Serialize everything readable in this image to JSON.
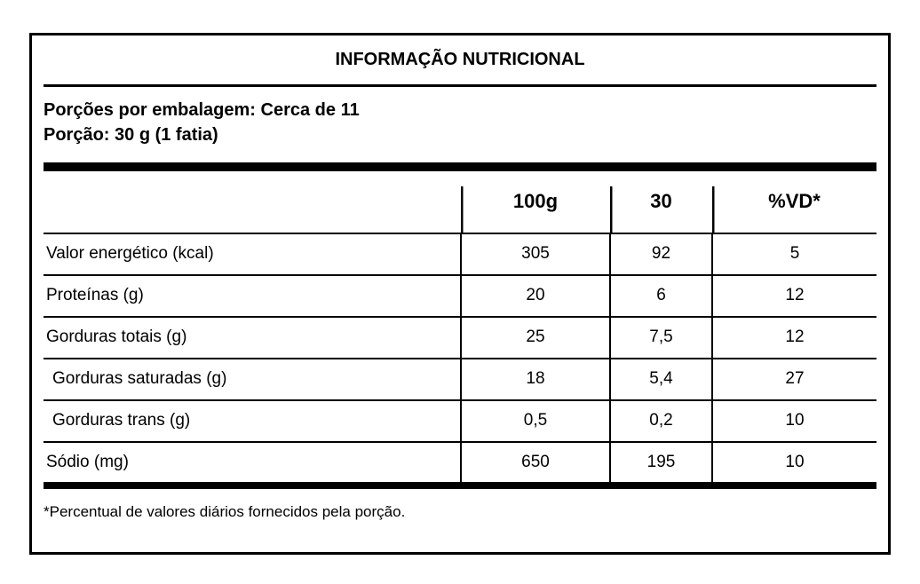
{
  "label": {
    "title": "INFORMAÇÃO NUTRICIONAL",
    "servings_per_package": "Porções por embalagem: Cerca de 11",
    "serving_size": "Porção: 30 g (1 fatia)",
    "footnote": "*Percentual de valores diários fornecidos pela porção."
  },
  "chart_data": {
    "type": "table",
    "columns": [
      "",
      "100g",
      "30",
      "%VD*"
    ],
    "rows": [
      {
        "label": "Valor energético (kcal)",
        "values": [
          "305",
          "92",
          "5"
        ]
      },
      {
        "label": "Proteínas (g)",
        "values": [
          "20",
          "6",
          "12"
        ]
      },
      {
        "label": "Gorduras totais (g)",
        "values": [
          "25",
          "7,5",
          "12"
        ]
      },
      {
        "label": "Gorduras saturadas (g)",
        "values": [
          "18",
          "5,4",
          "27"
        ]
      },
      {
        "label": "Gorduras trans (g)",
        "values": [
          "0,5",
          "0,2",
          "10"
        ]
      },
      {
        "label": "Sódio (mg)",
        "values": [
          "650",
          "195",
          "10"
        ]
      }
    ]
  },
  "colors": {
    "background": "#ffffff",
    "text": "#000000",
    "border": "#000000",
    "separator_bar": "#000000"
  }
}
